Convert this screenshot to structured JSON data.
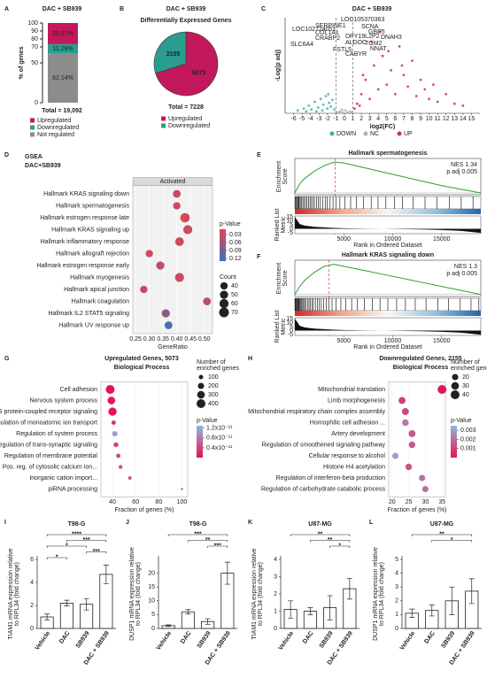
{
  "chart_data": [
    {
      "panel": "A",
      "type": "stacked_bar",
      "title": "DAC + SB939",
      "ylabel": "% of genes",
      "ylim": [
        0,
        100
      ],
      "yticks": [
        0,
        50,
        70,
        80,
        90,
        100
      ],
      "series": [
        {
          "name": "Not regulated",
          "color": "#8c8c8c",
          "values": [
            62.14
          ],
          "value_labels": [
            "62.14%"
          ]
        },
        {
          "name": "Downregulated",
          "color": "#2a9d8f",
          "values": [
            11.29
          ],
          "value_labels": [
            "11.29%"
          ]
        },
        {
          "name": "Upregulated",
          "color": "#c2185b",
          "values": [
            26.57
          ],
          "value_labels": [
            "26.57%"
          ]
        }
      ],
      "total": "Total = 19,092"
    },
    {
      "panel": "B",
      "type": "pie",
      "title": "DAC + SB939",
      "subtitle": "Differentially Expressed Genes",
      "categories": [
        "Upregulated",
        "Downregulated"
      ],
      "values": [
        5073,
        2155
      ],
      "colors": [
        "#c2185b",
        "#2a9d8f"
      ],
      "total": "Total = 7228"
    },
    {
      "panel": "C",
      "type": "scatter",
      "title": "DAC + SB939",
      "xlabel": "log2(FC)",
      "ylabel": "-Log(p adj)",
      "xlim": [
        -7,
        16
      ],
      "ylim": [
        0,
        100
      ],
      "xticks": [
        -6,
        -5,
        -4,
        -3,
        -2,
        -1,
        0,
        1,
        2,
        3,
        4,
        5,
        6,
        7,
        8,
        9,
        10,
        11,
        12,
        13,
        14,
        15
      ],
      "vlines": [
        -1,
        1
      ],
      "series": [
        {
          "name": "DOWN",
          "color": "#3fb3a6",
          "x": [
            -5.5,
            -4.8,
            -4.2,
            -3.9,
            -3.5,
            -3.1,
            -2.8,
            -2.5,
            -2.2,
            -2,
            -1.8,
            -1.6,
            -1.4,
            -1.2,
            -3.3,
            -2.6,
            -1.9,
            -4.5
          ],
          "values": [
            3,
            5,
            8,
            4,
            12,
            6,
            15,
            9,
            18,
            5,
            11,
            7,
            14,
            4,
            2,
            3,
            20,
            2
          ]
        },
        {
          "name": "NC",
          "color": "#b0b0b0",
          "x": [
            -0.8,
            -0.5,
            -0.2,
            0.1,
            0.4,
            0.7,
            0.9,
            -0.3,
            0.3,
            -0.6
          ],
          "values": [
            1,
            2,
            1,
            3,
            1,
            2,
            1,
            4,
            0.5,
            0.5
          ]
        },
        {
          "name": "UP",
          "color": "#d0267a",
          "x": [
            1.5,
            2,
            2.5,
            3,
            3.5,
            4,
            4.5,
            5,
            5.5,
            6,
            6.5,
            7,
            7.5,
            8,
            8.5,
            9,
            9.5,
            10,
            10.5,
            11,
            12,
            13,
            14,
            3.2,
            4.2,
            5.2,
            2.2,
            6.8,
            1.2,
            1.8
          ],
          "values": [
            10,
            20,
            35,
            15,
            50,
            25,
            60,
            30,
            45,
            20,
            70,
            40,
            28,
            55,
            18,
            35,
            25,
            15,
            30,
            12,
            20,
            10,
            8,
            75,
            85,
            65,
            40,
            50,
            5,
            8
          ]
        }
      ],
      "annotations": [
        "LOC105370363",
        "SCNA",
        "SERPINE1",
        "GBP5",
        "LOC102724051",
        "COL1A1",
        "DPY19L2P2",
        "DNAH3",
        "CRABP2",
        "ALDOC",
        "TGM2",
        "SLC6A4",
        "NNAT",
        "FSTL5",
        "CABYR"
      ]
    },
    {
      "panel": "D",
      "type": "dot",
      "title": "GSEA",
      "subtitle": "DAC+SB939",
      "header": "Activated",
      "xlabel": "GeneRatio",
      "categories": [
        "Hallmark KRAS signaling down",
        "Hallmark spermatogenesis",
        "Hallmark estrogen response late",
        "Hallmark KRAS signaling up",
        "Hallmark inflammatory response",
        "Hallmark allograft rejection",
        "Hallmark estrogen response early",
        "Hallmark myogenesis",
        "Hallmark apical junction",
        "Hallmark coagulation",
        "Hallmark IL2 STAT5 signaling",
        "Hallmark UV response up"
      ],
      "values": [
        0.4,
        0.4,
        0.43,
        0.44,
        0.41,
        0.3,
        0.34,
        0.41,
        0.28,
        0.51,
        0.36,
        0.37
      ],
      "sizes": [
        45,
        40,
        65,
        60,
        55,
        40,
        50,
        60,
        40,
        45,
        50,
        45
      ],
      "pvalues": [
        0.03,
        0.03,
        0.02,
        0.03,
        0.03,
        0.03,
        0.04,
        0.03,
        0.03,
        0.04,
        0.07,
        0.12
      ],
      "xlim": [
        0.24,
        0.53
      ],
      "xticks": [
        0.25,
        {
          "value": 0.3,
          "label": "0.30"
        },
        0.35,
        {
          "value": 0.4,
          "label": "0.40"
        },
        0.45,
        {
          "value": 0.5,
          "label": "0.50"
        }
      ],
      "color_title": "p-Value",
      "color_ticks": [
        0.03,
        0.06,
        0.09,
        0.12
      ],
      "clim": [
        0.01,
        0.13
      ],
      "colors": [
        "#e8414f",
        "#3a73b8"
      ],
      "size_title": [
        "Count"
      ],
      "size_ticks": [
        40,
        50,
        60,
        70
      ]
    },
    {
      "panel": "E",
      "type": "gsea",
      "title": "Hallmark spermatogenesis",
      "nes": "NES 1.34",
      "padj": "p adj 0.005",
      "es_label": [
        "Enrichment",
        "Score"
      ],
      "metric_label": [
        "Ranked List",
        "Metric"
      ],
      "xlabel": "Rank in Ordered Dataset",
      "xlim": [
        0,
        19000
      ],
      "xticks": [
        5000,
        10000,
        15000
      ],
      "x": [
        0,
        500,
        1000,
        2000,
        3000,
        4000,
        5000,
        7000,
        9000,
        11000,
        13000,
        15000,
        17000,
        19000
      ],
      "values": [
        0,
        0.1,
        0.16,
        0.24,
        0.3,
        0.34,
        0.33,
        0.28,
        0.23,
        0.18,
        0.13,
        0.08,
        0.04,
        0
      ],
      "ylim": [
        -0.02,
        0.38
      ],
      "metric": [
        15,
        6,
        4,
        2.5,
        1.8,
        1.2,
        0.8,
        0.3,
        0,
        -0.3,
        -0.8,
        -1.5,
        -2.5,
        -5
      ],
      "metric_ylim": [
        -6,
        16
      ],
      "metric_ticks": [
        15,
        10,
        5,
        0,
        -5
      ],
      "hits": [
        50,
        120,
        200,
        300,
        380,
        450,
        560,
        700,
        820,
        950,
        1100,
        1250,
        1400,
        1550,
        1700,
        1850,
        2000,
        2200,
        2400,
        2600,
        2850,
        3100,
        3300,
        3600,
        3900,
        4200,
        4600,
        5100,
        5700,
        6300,
        7000,
        7800,
        8500,
        9300,
        10200,
        11000,
        12100,
        13300,
        14500,
        15800,
        17000,
        18200
      ],
      "peak": 4100
    },
    {
      "panel": "F",
      "type": "gsea",
      "title": "Hallmark KRAS signaling down",
      "nes": "NES 1.3",
      "padj": "p adj 0.005",
      "es_label": [
        "Enrichment",
        "Score"
      ],
      "metric_label": [
        "Ranked List",
        "Metric"
      ],
      "xlabel": "Rank in Ordered Dataset",
      "xlim": [
        0,
        19000
      ],
      "xticks": [
        5000,
        10000,
        15000
      ],
      "x": [
        0,
        500,
        1000,
        2000,
        3000,
        4000,
        5000,
        7000,
        9000,
        11000,
        13000,
        15000,
        17000,
        19000
      ],
      "values": [
        0,
        0.08,
        0.14,
        0.22,
        0.28,
        0.3,
        0.28,
        0.24,
        0.2,
        0.16,
        0.12,
        0.08,
        0.04,
        0
      ],
      "ylim": [
        -0.02,
        0.34
      ],
      "metric": [
        15,
        6,
        4,
        2.5,
        1.8,
        1.2,
        0.8,
        0.3,
        0,
        -0.3,
        -0.8,
        -1.5,
        -2.5,
        -5
      ],
      "metric_ylim": [
        -6,
        16
      ],
      "metric_ticks": [
        15,
        10,
        5,
        0,
        -5
      ],
      "hits": [
        30,
        90,
        150,
        220,
        290,
        360,
        430,
        500,
        600,
        700,
        800,
        900,
        1000,
        1150,
        1300,
        1450,
        1600,
        1750,
        1900,
        2100,
        2300,
        2500,
        2700,
        2950,
        3200,
        3500,
        3800,
        4200,
        4700,
        5200,
        5800,
        6400,
        7100,
        7900,
        8700,
        9500,
        10400,
        11300,
        12300,
        13400,
        14600,
        15700,
        16900,
        18000,
        18800
      ],
      "peak": 3500
    },
    {
      "panel": "G",
      "type": "dot",
      "title": "Upregulated Genes, 5073",
      "subtitle": "Biological Process",
      "xlabel": "Fraction of genes (%)",
      "categories": [
        "Cell adhesion",
        "Nervous system process",
        "G protein-coupled receptor signaling",
        "Regulation of monoatomic ion transport",
        "Regulation of system process",
        "Regulation of trans-synaptic signaling",
        "Regulation of membrane potential",
        "Pos. reg. of cytosolic calcium ion...",
        "Inorganic cation import...",
        "piRNA processing"
      ],
      "values": [
        38,
        39,
        40,
        41,
        42,
        43,
        45,
        47,
        55,
        100
      ],
      "sizes": [
        400,
        300,
        350,
        100,
        150,
        120,
        100,
        80,
        60,
        20
      ],
      "pvalues": [
        1e-13,
        2e-13,
        1e-13,
        3e-12,
        1.1e-11,
        4e-12,
        5e-12,
        6e-12,
        5e-12,
        3e-12
      ],
      "xlim": [
        30,
        105
      ],
      "xticks": [
        40,
        60,
        80,
        100
      ],
      "color_title": "p-Value",
      "color_ticks": [
        {
          "value": 1.2e-11,
          "label": "1.2x10⁻¹¹"
        },
        {
          "value": 8e-12,
          "label": "0.8x10⁻¹¹"
        },
        {
          "value": 4e-12,
          "label": "0.4x10⁻¹¹"
        }
      ],
      "clim": [
        1.3e-11,
        0
      ],
      "colors": [
        "#e8114f",
        "#8fb8e0"
      ],
      "size_title": [
        "Number of",
        "enriched genes"
      ],
      "size_ticks": [
        100,
        200,
        300,
        400
      ]
    },
    {
      "panel": "H",
      "type": "dot",
      "title": "Downregulated Genes, 2155",
      "subtitle": "Biological Process",
      "xlabel": "Fraction of genes (%)",
      "categories": [
        "Mitochondrial translation",
        "Limb morphogenesis",
        "Mitochondrial respiratory chain complex assembly",
        "Homophilic cell adhesion ...",
        "Artery development",
        "Regulation of smoothened signaling pathway",
        "Cellular response to alcohol",
        "Histone H4 acetylation",
        "Regulation of interferon-beta production",
        "Regulation of carbohydrate catabolic process"
      ],
      "values": [
        35,
        23,
        24,
        24,
        26,
        26,
        21,
        25,
        29,
        30
      ],
      "sizes": [
        40,
        25,
        25,
        22,
        25,
        22,
        20,
        22,
        20,
        20
      ],
      "pvalues": [
        0.0001,
        0.001,
        0.0012,
        0.0022,
        0.0015,
        0.0015,
        0.003,
        0.0015,
        0.002,
        0.002
      ],
      "xlim": [
        19,
        36
      ],
      "xticks": [
        20,
        25,
        30,
        35
      ],
      "color_title": "p-Value",
      "color_ticks": [
        0.003,
        0.002,
        0.001
      ],
      "clim": [
        0.0035,
        0
      ],
      "colors": [
        "#e8114f",
        "#8fb8e0"
      ],
      "size_title": [
        "Number of",
        "enriched genes"
      ],
      "size_ticks": [
        20,
        30,
        40
      ]
    },
    {
      "panel": "I",
      "type": "bar",
      "title": "T98-G",
      "ylabel": [
        "TIAM1 mRNA expression relative",
        "to RPL34 (fold change)"
      ],
      "categories": [
        "Vehicle",
        "DAC",
        "SB939",
        "DAC + SB939"
      ],
      "values": [
        1,
        2.2,
        2.1,
        4.7
      ],
      "errors": [
        0.25,
        0.25,
        0.5,
        0.8
      ],
      "ylim": [
        0,
        6
      ],
      "yticks": [
        0,
        2,
        4,
        6
      ],
      "significance": [
        {
          "pair": [
            0,
            3
          ],
          "label": "****"
        },
        {
          "pair": [
            1,
            3
          ],
          "label": "***"
        },
        {
          "pair": [
            0,
            2
          ],
          "label": "*"
        },
        {
          "pair": [
            2,
            3
          ],
          "label": "***"
        },
        {
          "pair": [
            0,
            1
          ],
          "label": "*"
        }
      ]
    },
    {
      "panel": "J",
      "type": "bar",
      "title": "T98-G",
      "ylabel": [
        "DUSP1 mRNA expression relative",
        "to RPL34 (fold change)"
      ],
      "categories": [
        "Vehicle",
        "DAC",
        "SB939",
        "DAC + SB939"
      ],
      "values": [
        1,
        6,
        2.5,
        20
      ],
      "errors": [
        0.3,
        0.8,
        1,
        4
      ],
      "ylim": [
        0,
        25
      ],
      "yticks": [
        0,
        5,
        10,
        15,
        20
      ],
      "significance": [
        {
          "pair": [
            0,
            3
          ],
          "label": "***"
        },
        {
          "pair": [
            1,
            3
          ],
          "label": "**"
        },
        {
          "pair": [
            2,
            3
          ],
          "label": "***"
        }
      ]
    },
    {
      "panel": "K",
      "type": "bar",
      "title": "U87-MG",
      "ylabel": [
        "TIAM1 mRNA expression relative",
        "to RPL34 (fold change)"
      ],
      "categories": [
        "Vehicle",
        "DAC",
        "SB939",
        "DAC + SB939"
      ],
      "values": [
        1.1,
        1,
        1.2,
        2.3
      ],
      "errors": [
        0.5,
        0.2,
        0.7,
        0.6
      ],
      "ylim": [
        0,
        4
      ],
      "yticks": [
        0,
        1,
        2,
        3,
        4
      ],
      "significance": [
        {
          "pair": [
            0,
            3
          ],
          "label": "**"
        },
        {
          "pair": [
            1,
            3
          ],
          "label": "**"
        },
        {
          "pair": [
            2,
            3
          ],
          "label": "*"
        }
      ]
    },
    {
      "panel": "L",
      "type": "bar",
      "title": "U87-MG",
      "ylabel": [
        "DUSP1 mRNA expression relative",
        "to RPL34 (fold change)"
      ],
      "categories": [
        "Vehicle",
        "DAC",
        "SB939",
        "DAC + SB939"
      ],
      "values": [
        1.1,
        1.3,
        2,
        2.7
      ],
      "errors": [
        0.3,
        0.4,
        1,
        0.9
      ],
      "ylim": [
        0,
        5
      ],
      "yticks": [
        0,
        1,
        2,
        3,
        4,
        5
      ],
      "significance": [
        {
          "pair": [
            0,
            3
          ],
          "label": "**"
        },
        {
          "pair": [
            1,
            3
          ],
          "label": "*"
        }
      ]
    }
  ]
}
